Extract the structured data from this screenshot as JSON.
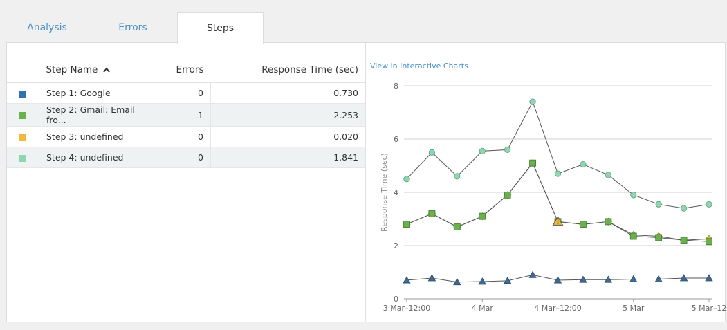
{
  "tabs": [
    {
      "label": "Analysis",
      "active": false
    },
    {
      "label": "Errors",
      "active": false
    },
    {
      "label": "Steps",
      "active": true
    }
  ],
  "table": {
    "headers": {
      "step_name": "Step Name",
      "errors": "Errors",
      "response_time": "Response Time (sec)"
    },
    "sort_indicator": "chevron-up-icon",
    "rows": [
      {
        "name": "Step 1: Google",
        "errors": "0",
        "response_time": "0.730",
        "color": "#2f6fb3"
      },
      {
        "name": "Step 2: Gmail: Email fro...",
        "errors": "1",
        "response_time": "2.253",
        "color": "#6ab04c"
      },
      {
        "name": "Step 3: undefined",
        "errors": "0",
        "response_time": "0.020",
        "color": "#f0b93a"
      },
      {
        "name": "Step 4: undefined",
        "errors": "0",
        "response_time": "1.841",
        "color": "#8fd6b0"
      }
    ]
  },
  "chart_link": "View in Interactive Charts",
  "chart_data": {
    "type": "line",
    "ylabel": "Response Time (sec)",
    "xlabel": "",
    "ylim": [
      0,
      8
    ],
    "yticks": [
      0,
      2,
      4,
      6,
      8
    ],
    "xticks": [
      "3 Mar–12:00",
      "4 Mar",
      "4 Mar–12:00",
      "5 Mar",
      "5 Mar–12"
    ],
    "xtick_index": [
      0,
      3,
      6,
      9,
      12
    ],
    "grid": true,
    "legend": "none",
    "x_index": [
      0,
      1,
      2,
      3,
      4,
      5,
      6,
      7,
      8,
      9,
      10,
      11,
      12
    ],
    "series": [
      {
        "marker": "circle",
        "color": "#8fd6b0",
        "values": [
          4.5,
          5.5,
          4.6,
          5.55,
          5.6,
          7.4,
          4.7,
          5.05,
          4.65,
          3.9,
          3.55,
          3.4,
          3.55
        ]
      },
      {
        "marker": "diamond",
        "color": "#f0b93a",
        "values": [
          2.8,
          3.2,
          2.7,
          3.1,
          3.9,
          5.1,
          2.9,
          2.8,
          2.9,
          2.4,
          2.35,
          2.2,
          2.25
        ]
      },
      {
        "marker": "square",
        "color": "#6ab04c",
        "values": [
          2.8,
          3.2,
          2.7,
          3.1,
          3.9,
          5.1,
          2.9,
          2.8,
          2.9,
          2.35,
          2.3,
          2.2,
          2.15
        ]
      },
      {
        "marker": "triangle",
        "color": "#3d6a95",
        "values": [
          0.7,
          0.78,
          0.63,
          0.65,
          0.68,
          0.9,
          0.7,
          0.72,
          0.72,
          0.74,
          0.74,
          0.78,
          0.78
        ]
      }
    ],
    "annotations": [
      {
        "type": "warning-icon",
        "series": 1,
        "index": 6,
        "color": "#f0b93a"
      }
    ]
  }
}
